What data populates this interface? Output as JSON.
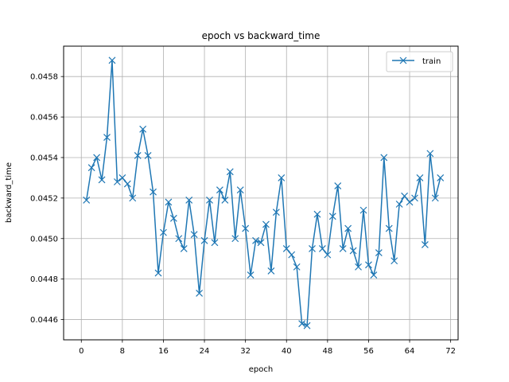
{
  "chart_data": {
    "type": "line",
    "title": "epoch vs backward_time",
    "xlabel": "epoch",
    "ylabel": "backward_time",
    "xlim": [
      -3.45,
      73.45
    ],
    "ylim": [
      0.0445,
      0.04595
    ],
    "xticks": [
      0,
      8,
      16,
      24,
      32,
      40,
      48,
      56,
      64,
      72
    ],
    "yticks": [
      0.0446,
      0.0448,
      0.045,
      0.0452,
      0.0454,
      0.0456,
      0.0458
    ],
    "ytick_labels": [
      "0.0446",
      "0.0448",
      "0.0450",
      "0.0452",
      "0.0454",
      "0.0456",
      "0.0458"
    ],
    "grid": true,
    "legend_position": "top-right",
    "marker": "x",
    "series": [
      {
        "name": "train",
        "color": "#1f77b4",
        "x": [
          1,
          2,
          3,
          4,
          5,
          6,
          7,
          8,
          9,
          10,
          11,
          12,
          13,
          14,
          15,
          16,
          17,
          18,
          19,
          20,
          21,
          22,
          23,
          24,
          25,
          26,
          27,
          28,
          29,
          30,
          31,
          32,
          33,
          34,
          35,
          36,
          37,
          38,
          39,
          40,
          41,
          42,
          43,
          44,
          45,
          46,
          47,
          48,
          49,
          50,
          51,
          52,
          53,
          54,
          55,
          56,
          57,
          58,
          59,
          60,
          61,
          62,
          63,
          64,
          65,
          66,
          67,
          68,
          69,
          70
        ],
        "y": [
          0.04519,
          0.04535,
          0.0454,
          0.04529,
          0.0455,
          0.04588,
          0.04528,
          0.0453,
          0.04527,
          0.0452,
          0.04541,
          0.04554,
          0.04541,
          0.04523,
          0.04483,
          0.04503,
          0.04518,
          0.0451,
          0.045,
          0.04495,
          0.04519,
          0.04502,
          0.04473,
          0.04499,
          0.04519,
          0.04498,
          0.04524,
          0.04519,
          0.04533,
          0.045,
          0.04524,
          0.04505,
          0.04482,
          0.04499,
          0.04498,
          0.04507,
          0.04484,
          0.04513,
          0.0453,
          0.04495,
          0.04492,
          0.04486,
          0.04458,
          0.04457,
          0.04495,
          0.04512,
          0.04495,
          0.04492,
          0.04511,
          0.04526,
          0.04495,
          0.04505,
          0.04494,
          0.04486,
          0.04514,
          0.04487,
          0.04482,
          0.04493,
          0.0454,
          0.04505,
          0.04489,
          0.04517,
          0.04521,
          0.04518,
          0.0452,
          0.0453,
          0.04497,
          0.04542,
          0.0452,
          0.0453
        ]
      }
    ]
  }
}
